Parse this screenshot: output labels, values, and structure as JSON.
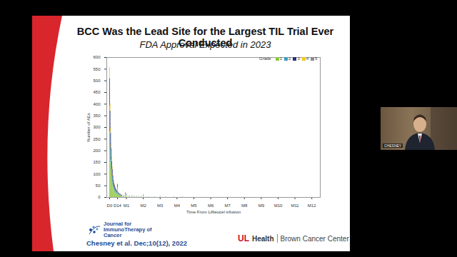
{
  "chart_data": {
    "type": "bar",
    "title": "BCC Was the Lead Site for the Largest TIL Trial Ever Conducted",
    "subtitle": "FDA Approval Expected in 2023",
    "x_label": "Time From Lifileucel infusion",
    "y_label": "Number of AEs",
    "legend_title": "Grade",
    "legend": "upper right",
    "stacked": true,
    "grid": false,
    "x": [
      0,
      1,
      2,
      3,
      4,
      5,
      6,
      7,
      8,
      9,
      10,
      11,
      12,
      13,
      14,
      15,
      16,
      17,
      18,
      19,
      20,
      21,
      22,
      24,
      26,
      28,
      30,
      33,
      36,
      40,
      44,
      48,
      52,
      56,
      60,
      65,
      70,
      80,
      90,
      100,
      115,
      130,
      150,
      170,
      190,
      210,
      240,
      270,
      300,
      330,
      360
    ],
    "series": [
      {
        "name": "1",
        "color": "#8dc63f",
        "values": [
          280,
          200,
          150,
          115,
          85,
          65,
          50,
          40,
          33,
          28,
          23,
          20,
          18,
          15,
          30,
          13,
          10,
          9,
          8,
          7,
          6,
          5,
          5,
          4,
          4,
          10,
          8,
          3,
          3,
          4,
          3,
          2,
          2,
          2,
          6,
          2,
          2,
          2,
          2,
          1,
          1,
          1,
          1,
          1,
          1,
          1,
          1,
          1,
          1,
          1,
          1
        ]
      },
      {
        "name": "2",
        "color": "#3b9dc8",
        "values": [
          110,
          80,
          60,
          45,
          35,
          25,
          20,
          16,
          13,
          11,
          9,
          8,
          7,
          6,
          12,
          5,
          4,
          4,
          3,
          3,
          3,
          2,
          2,
          2,
          1,
          4,
          3,
          1,
          1,
          2,
          1,
          1,
          1,
          1,
          3,
          1,
          1,
          1,
          1,
          1,
          0,
          0,
          0,
          0,
          0,
          0,
          0,
          0,
          0,
          0,
          0
        ]
      },
      {
        "name": "3",
        "color": "#2b2e6e",
        "values": [
          120,
          90,
          65,
          50,
          35,
          30,
          22,
          17,
          14,
          12,
          10,
          9,
          7,
          6,
          13,
          5,
          4,
          4,
          3,
          3,
          2,
          2,
          2,
          1,
          1,
          4,
          3,
          1,
          1,
          1,
          1,
          1,
          1,
          1,
          2,
          0,
          0,
          0,
          1,
          0,
          1,
          1,
          0,
          0,
          0,
          0,
          0,
          0,
          0,
          0,
          0
        ]
      },
      {
        "name": "4",
        "color": "#f5c518",
        "values": [
          40,
          28,
          22,
          18,
          13,
          9,
          7,
          6,
          4,
          3,
          3,
          2,
          2,
          2,
          4,
          2,
          1,
          1,
          1,
          1,
          1,
          1,
          1,
          1,
          1,
          2,
          1,
          1,
          0,
          1,
          0,
          0,
          0,
          0,
          1,
          0,
          0,
          0,
          0,
          0,
          0,
          0,
          0,
          0,
          0,
          0,
          0,
          0,
          0,
          0,
          0
        ]
      },
      {
        "name": "5",
        "color": "#8c8c8c",
        "values": [
          5,
          2,
          3,
          2,
          2,
          1,
          1,
          1,
          1,
          1,
          0,
          0,
          0,
          0,
          1,
          0,
          0,
          0,
          0,
          0,
          0,
          0,
          0,
          0,
          0,
          1,
          0,
          0,
          0,
          0,
          0,
          0,
          0,
          0,
          0,
          0,
          0,
          0,
          0,
          0,
          0,
          0,
          0,
          0,
          0,
          0,
          0,
          0,
          0,
          0,
          0
        ]
      }
    ],
    "xlim": [
      -5,
      375
    ],
    "xticks": [
      {
        "value": 0,
        "label": "D0"
      },
      {
        "value": 14,
        "label": "D14"
      },
      {
        "value": 30,
        "label": "M1"
      },
      {
        "value": 60,
        "label": "M2"
      },
      {
        "value": 90,
        "label": "M3"
      },
      {
        "value": 120,
        "label": "M4"
      },
      {
        "value": 150,
        "label": "M5"
      },
      {
        "value": 180,
        "label": "M6"
      },
      {
        "value": 210,
        "label": "M7"
      },
      {
        "value": 240,
        "label": "M8"
      },
      {
        "value": 270,
        "label": "M9"
      },
      {
        "value": 300,
        "label": "M10"
      },
      {
        "value": 330,
        "label": "M11"
      },
      {
        "value": 360,
        "label": "M12"
      }
    ],
    "ylim": [
      0,
      600
    ],
    "yticks": [
      0,
      50,
      100,
      150,
      200,
      250,
      300,
      350,
      400,
      450,
      500,
      550,
      600
    ]
  },
  "slide": {
    "journal": "Journal for ImmunoTherapy of Cancer",
    "citation": "Chesney et al. Dec;10(12), 2022",
    "logo": "UL",
    "health": "Health",
    "institution": "Brown Cancer Center",
    "speaker": "CHESNEY"
  }
}
